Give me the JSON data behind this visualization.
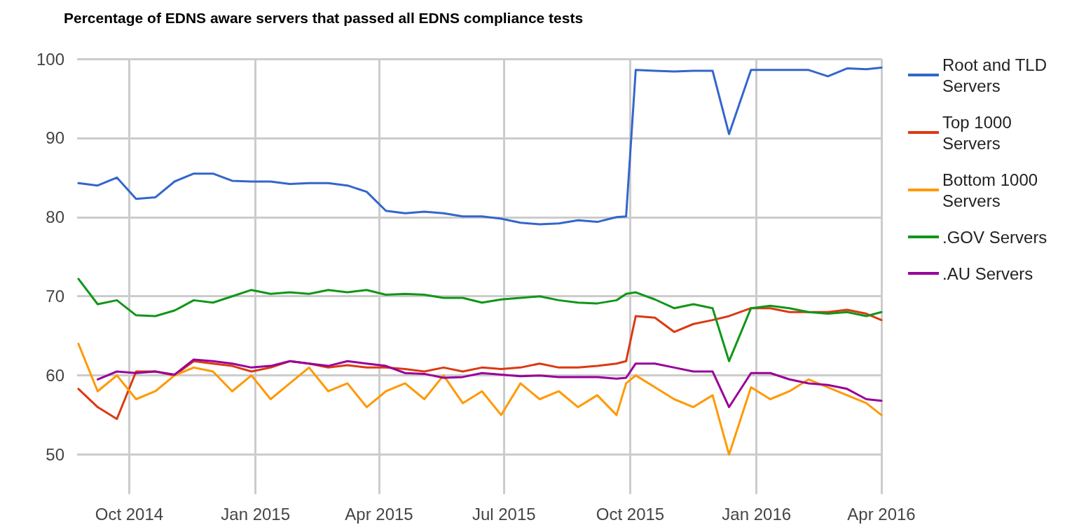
{
  "chart_data": {
    "type": "line",
    "title": "Percentage of EDNS aware servers that passed all EDNS compliance tests",
    "x": [
      "2014-08-25",
      "2014-09-08",
      "2014-09-22",
      "2014-10-06",
      "2014-10-20",
      "2014-11-03",
      "2014-11-17",
      "2014-12-01",
      "2014-12-15",
      "2014-12-29",
      "2015-01-12",
      "2015-01-26",
      "2015-02-09",
      "2015-02-23",
      "2015-03-09",
      "2015-03-23",
      "2015-04-06",
      "2015-04-20",
      "2015-05-04",
      "2015-05-18",
      "2015-06-01",
      "2015-06-15",
      "2015-06-29",
      "2015-07-13",
      "2015-07-27",
      "2015-08-10",
      "2015-08-24",
      "2015-09-07",
      "2015-09-21",
      "2015-09-28",
      "2015-10-05",
      "2015-10-19",
      "2015-11-02",
      "2015-11-16",
      "2015-11-30",
      "2015-12-12",
      "2015-12-28",
      "2016-01-11",
      "2016-01-25",
      "2016-02-08",
      "2016-02-22",
      "2016-03-07",
      "2016-03-21",
      "2016-04-01"
    ],
    "series": [
      {
        "name": "Root and TLD Servers",
        "color": "#3366cc",
        "values": [
          84.3,
          84,
          85,
          82.3,
          82.5,
          84.5,
          85.5,
          85.5,
          84.6,
          84.5,
          84.5,
          84.2,
          84.3,
          84.3,
          84,
          83.2,
          80.8,
          80.5,
          80.7,
          80.5,
          80.1,
          80.1,
          79.8,
          79.3,
          79.1,
          79.2,
          79.6,
          79.4,
          80,
          80.1,
          98.6,
          98.5,
          98.4,
          98.5,
          98.5,
          90.5,
          98.6,
          98.6,
          98.6,
          98.6,
          97.8,
          98.8,
          98.7,
          98.9
        ]
      },
      {
        "name": "Top 1000 Servers",
        "color": "#dc3912",
        "values": [
          58.3,
          56,
          54.5,
          60.5,
          60.5,
          60,
          61.8,
          61.5,
          61.2,
          60.5,
          61,
          61.8,
          61.5,
          61,
          61.3,
          61,
          61,
          60.8,
          60.5,
          61,
          60.5,
          61,
          60.8,
          61,
          61.5,
          61,
          61,
          61.2,
          61.5,
          61.8,
          67.5,
          67.3,
          65.5,
          66.5,
          67,
          67.5,
          68.5,
          68.5,
          68,
          68,
          68,
          68.3,
          67.8,
          67
        ]
      },
      {
        "name": "Bottom 1000 Servers",
        "color": "#ff9900",
        "values": [
          64,
          58,
          60,
          57,
          58,
          60,
          61,
          60.5,
          58,
          60,
          57,
          59,
          61,
          58,
          59,
          56,
          58,
          59,
          57,
          60,
          56.5,
          58,
          55,
          59,
          57,
          58,
          56,
          57.5,
          55,
          59,
          60,
          58.5,
          57,
          56,
          57.5,
          50,
          58.5,
          57,
          58,
          59.5,
          58.5,
          57.5,
          56.5,
          55
        ]
      },
      {
        "name": ".GOV Servers",
        "color": "#109618",
        "values": [
          72.2,
          69,
          69.5,
          67.6,
          67.5,
          68.2,
          69.5,
          69.2,
          70,
          70.8,
          70.3,
          70.5,
          70.3,
          70.8,
          70.5,
          70.8,
          70.2,
          70.3,
          70.2,
          69.8,
          69.8,
          69.2,
          69.6,
          69.8,
          70,
          69.5,
          69.2,
          69.1,
          69.5,
          70.3,
          70.5,
          69.6,
          68.5,
          69,
          68.5,
          61.8,
          68.5,
          68.8,
          68.5,
          68,
          67.8,
          68,
          67.5,
          68
        ]
      },
      {
        "name": ".AU Servers",
        "color": "#990099",
        "values": [
          null,
          59.5,
          60.5,
          60.3,
          60.5,
          60.1,
          62,
          61.8,
          61.5,
          61,
          61.2,
          61.8,
          61.5,
          61.2,
          61.8,
          61.5,
          61.2,
          60.3,
          60.2,
          59.7,
          59.8,
          60.3,
          60.1,
          59.9,
          60,
          59.8,
          59.8,
          59.8,
          59.6,
          59.7,
          61.5,
          61.5,
          61,
          60.5,
          60.5,
          56,
          60.3,
          60.3,
          59.5,
          59,
          58.8,
          58.3,
          57,
          56.8
        ]
      }
    ],
    "xlim": [
      "2014-08-24",
      "2016-04-01"
    ],
    "xticks": [
      {
        "value": "2014-10-01",
        "label": "Oct 2014"
      },
      {
        "value": "2015-01-01",
        "label": "Jan 2015"
      },
      {
        "value": "2015-04-01",
        "label": "Apr 2015"
      },
      {
        "value": "2015-07-01",
        "label": "Jul 2015"
      },
      {
        "value": "2015-10-01",
        "label": "Oct 2015"
      },
      {
        "value": "2016-01-01",
        "label": "Jan 2016"
      },
      {
        "value": "2016-04-01",
        "label": "Apr 2016"
      }
    ],
    "ylim": [
      45,
      100
    ],
    "yticks": [
      50,
      60,
      70,
      80,
      90,
      100
    ],
    "grid": true,
    "legend": "right",
    "marker": "none",
    "line_style": "solid"
  }
}
